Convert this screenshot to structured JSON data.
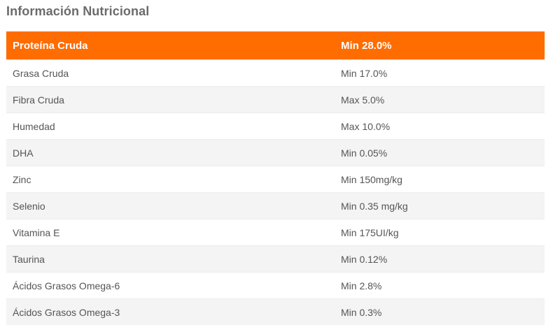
{
  "title": "Información Nutricional",
  "table": {
    "header": {
      "name": "Proteína Cruda",
      "value": "Min 28.0%"
    },
    "rows": [
      {
        "name": "Grasa Cruda",
        "value": "Min 17.0%"
      },
      {
        "name": "Fibra Cruda",
        "value": "Max 5.0%"
      },
      {
        "name": "Humedad",
        "value": "Max 10.0%"
      },
      {
        "name": "DHA",
        "value": "Min 0.05%"
      },
      {
        "name": "Zinc",
        "value": "Min 150mg/kg"
      },
      {
        "name": "Selenio",
        "value": "Min 0.35 mg/kg"
      },
      {
        "name": "Vitamina E",
        "value": "Min 175UI/kg"
      },
      {
        "name": "Taurina",
        "value": "Min 0.12%"
      },
      {
        "name": "Ácidos Grasos Omega-6",
        "value": "Min 2.8%"
      },
      {
        "name": "Ácidos Grasos Omega-3",
        "value": "Min 0.3%"
      }
    ]
  },
  "colors": {
    "header_bg": "#ff6c00",
    "header_text": "#ffffff",
    "stripe": "#f4f4f4",
    "text": "#555555"
  }
}
